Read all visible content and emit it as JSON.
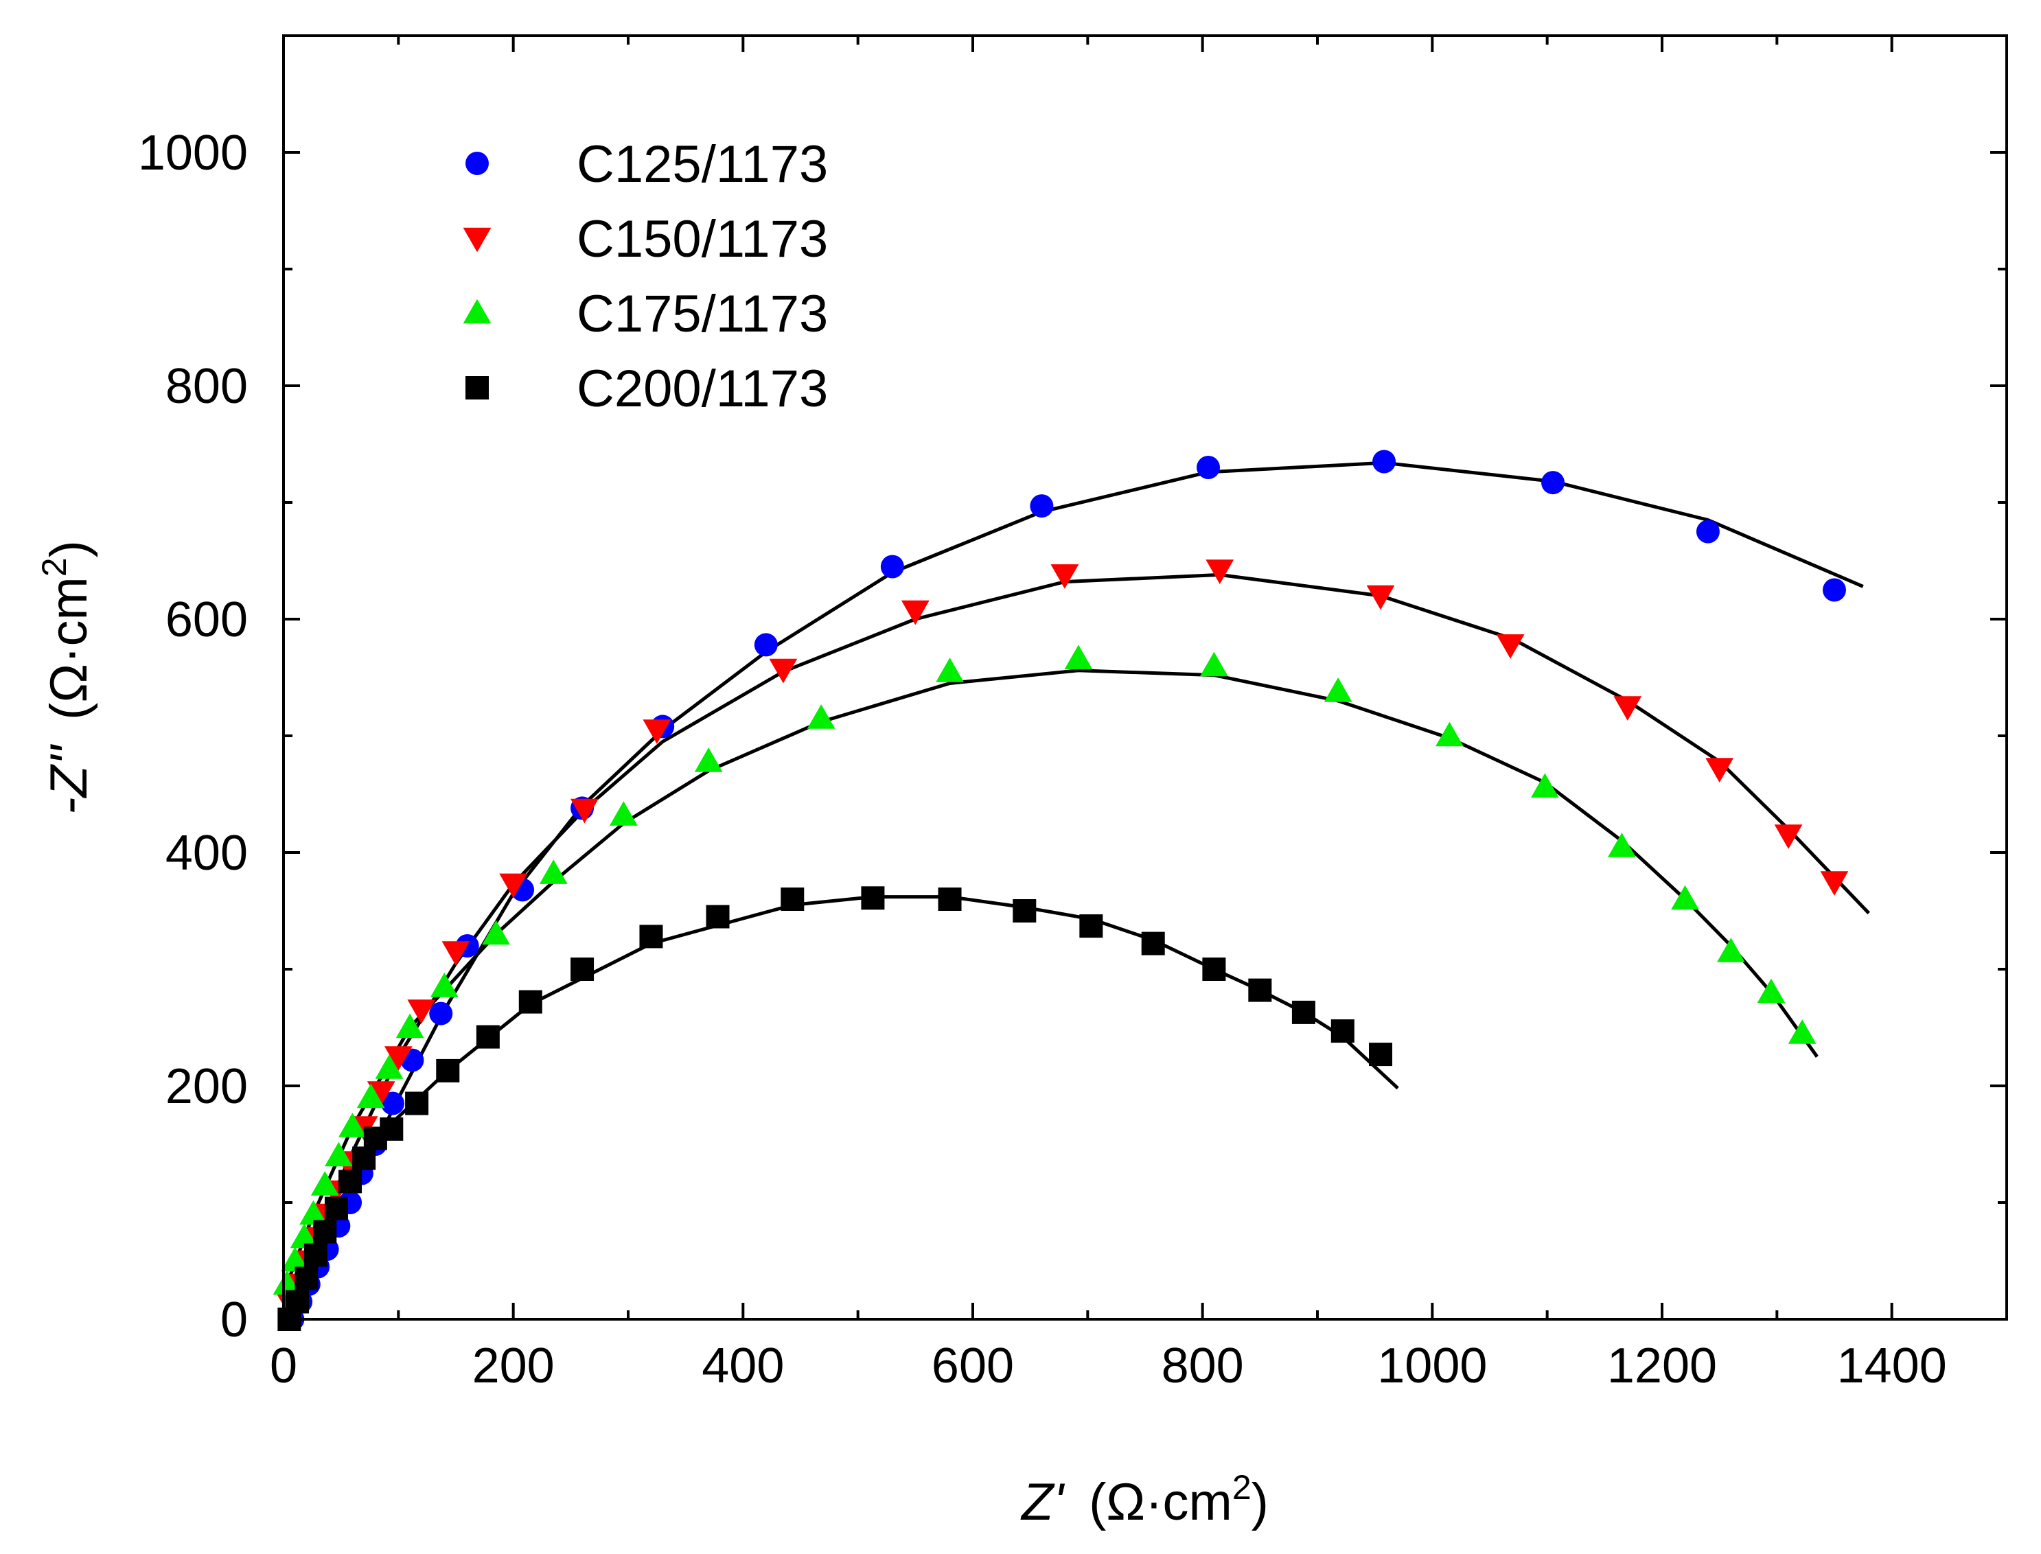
{
  "chart_data": {
    "type": "scatter",
    "title": "",
    "xlabel": {
      "var": "Z'",
      "unit": "(Ω·cm",
      "sup": "2",
      "close": ")"
    },
    "ylabel": {
      "var": "-Z''",
      "unit": "(Ω·cm",
      "sup": "2",
      "close": ")"
    },
    "xlim": [
      0,
      1500
    ],
    "ylim": [
      0,
      1100
    ],
    "x_ticks": [
      0,
      200,
      400,
      600,
      800,
      1000,
      1200,
      1400
    ],
    "y_ticks": [
      0,
      200,
      400,
      600,
      800,
      1000
    ],
    "x_minor_step": 100,
    "y_minor_step": 100,
    "legend_position": "top-left",
    "series": [
      {
        "name": "C125/1173",
        "color": "#0000ff",
        "marker": "circle",
        "points": [
          [
            8,
            0
          ],
          [
            15,
            15
          ],
          [
            22,
            30
          ],
          [
            30,
            45
          ],
          [
            38,
            60
          ],
          [
            48,
            80
          ],
          [
            58,
            100
          ],
          [
            68,
            125
          ],
          [
            80,
            150
          ],
          [
            95,
            185
          ],
          [
            112,
            222
          ],
          [
            137,
            262
          ],
          [
            160,
            320
          ],
          [
            208,
            368
          ],
          [
            260,
            438
          ],
          [
            330,
            508
          ],
          [
            420,
            578
          ],
          [
            530,
            645
          ],
          [
            660,
            697
          ],
          [
            805,
            730
          ],
          [
            958,
            735
          ],
          [
            1105,
            717
          ],
          [
            1240,
            675
          ],
          [
            1350,
            625
          ]
        ],
        "fit": [
          [
            8,
            0
          ],
          [
            30,
            45
          ],
          [
            58,
            100
          ],
          [
            95,
            180
          ],
          [
            140,
            265
          ],
          [
            200,
            365
          ],
          [
            260,
            440
          ],
          [
            330,
            505
          ],
          [
            420,
            572
          ],
          [
            530,
            640
          ],
          [
            660,
            692
          ],
          [
            805,
            726
          ],
          [
            958,
            734
          ],
          [
            1105,
            718
          ],
          [
            1240,
            685
          ],
          [
            1375,
            628
          ]
        ]
      },
      {
        "name": "C150/1173",
        "color": "#ff0000",
        "marker": "triangle-down",
        "points": [
          [
            5,
            15
          ],
          [
            12,
            30
          ],
          [
            20,
            50
          ],
          [
            28,
            70
          ],
          [
            36,
            90
          ],
          [
            45,
            110
          ],
          [
            56,
            135
          ],
          [
            70,
            165
          ],
          [
            85,
            195
          ],
          [
            100,
            225
          ],
          [
            120,
            265
          ],
          [
            150,
            315
          ],
          [
            200,
            373
          ],
          [
            262,
            437
          ],
          [
            325,
            505
          ],
          [
            435,
            557
          ],
          [
            550,
            607
          ],
          [
            680,
            638
          ],
          [
            815,
            642
          ],
          [
            955,
            620
          ],
          [
            1068,
            578
          ],
          [
            1170,
            525
          ],
          [
            1250,
            472
          ],
          [
            1310,
            415
          ],
          [
            1350,
            375
          ]
        ],
        "fit": [
          [
            5,
            15
          ],
          [
            28,
            70
          ],
          [
            56,
            135
          ],
          [
            100,
            225
          ],
          [
            150,
            305
          ],
          [
            200,
            373
          ],
          [
            262,
            437
          ],
          [
            330,
            495
          ],
          [
            435,
            555
          ],
          [
            550,
            600
          ],
          [
            680,
            632
          ],
          [
            815,
            638
          ],
          [
            955,
            620
          ],
          [
            1070,
            583
          ],
          [
            1170,
            530
          ],
          [
            1250,
            478
          ],
          [
            1310,
            420
          ],
          [
            1380,
            348
          ]
        ]
      },
      {
        "name": "C175/1173",
        "color": "#00ee00",
        "marker": "triangle-up",
        "points": [
          [
            3,
            30
          ],
          [
            10,
            50
          ],
          [
            18,
            70
          ],
          [
            26,
            90
          ],
          [
            36,
            115
          ],
          [
            48,
            140
          ],
          [
            60,
            165
          ],
          [
            76,
            190
          ],
          [
            92,
            215
          ],
          [
            110,
            250
          ],
          [
            140,
            285
          ],
          [
            185,
            330
          ],
          [
            235,
            382
          ],
          [
            296,
            432
          ],
          [
            370,
            478
          ],
          [
            468,
            515
          ],
          [
            580,
            555
          ],
          [
            692,
            566
          ],
          [
            810,
            560
          ],
          [
            918,
            538
          ],
          [
            1015,
            500
          ],
          [
            1098,
            456
          ],
          [
            1165,
            405
          ],
          [
            1220,
            360
          ],
          [
            1260,
            315
          ],
          [
            1295,
            280
          ],
          [
            1322,
            245
          ]
        ],
        "fit": [
          [
            3,
            30
          ],
          [
            26,
            90
          ],
          [
            60,
            165
          ],
          [
            110,
            250
          ],
          [
            185,
            330
          ],
          [
            235,
            375
          ],
          [
            296,
            425
          ],
          [
            370,
            470
          ],
          [
            468,
            512
          ],
          [
            580,
            545
          ],
          [
            692,
            556
          ],
          [
            810,
            552
          ],
          [
            918,
            530
          ],
          [
            1015,
            498
          ],
          [
            1098,
            460
          ],
          [
            1165,
            410
          ],
          [
            1220,
            360
          ],
          [
            1260,
            320
          ],
          [
            1295,
            280
          ],
          [
            1335,
            225
          ]
        ]
      },
      {
        "name": "C200/1173",
        "color": "#000000",
        "marker": "square",
        "points": [
          [
            5,
            0
          ],
          [
            12,
            15
          ],
          [
            20,
            35
          ],
          [
            28,
            55
          ],
          [
            36,
            75
          ],
          [
            46,
            95
          ],
          [
            58,
            118
          ],
          [
            70,
            138
          ],
          [
            80,
            155
          ],
          [
            94,
            163
          ],
          [
            116,
            185
          ],
          [
            143,
            213
          ],
          [
            178,
            242
          ],
          [
            215,
            272
          ],
          [
            260,
            300
          ],
          [
            320,
            328
          ],
          [
            378,
            345
          ],
          [
            443,
            360
          ],
          [
            513,
            361
          ],
          [
            580,
            360
          ],
          [
            645,
            350
          ],
          [
            703,
            337
          ],
          [
            757,
            322
          ],
          [
            810,
            300
          ],
          [
            850,
            282
          ],
          [
            888,
            263
          ],
          [
            922,
            247
          ],
          [
            955,
            227
          ]
        ],
        "fit": [
          [
            5,
            0
          ],
          [
            28,
            55
          ],
          [
            58,
            118
          ],
          [
            94,
            168
          ],
          [
            143,
            213
          ],
          [
            215,
            270
          ],
          [
            320,
            322
          ],
          [
            443,
            355
          ],
          [
            513,
            362
          ],
          [
            580,
            362
          ],
          [
            645,
            353
          ],
          [
            703,
            343
          ],
          [
            757,
            325
          ],
          [
            810,
            300
          ],
          [
            850,
            282
          ],
          [
            888,
            263
          ],
          [
            922,
            242
          ],
          [
            970,
            198
          ]
        ]
      }
    ]
  }
}
